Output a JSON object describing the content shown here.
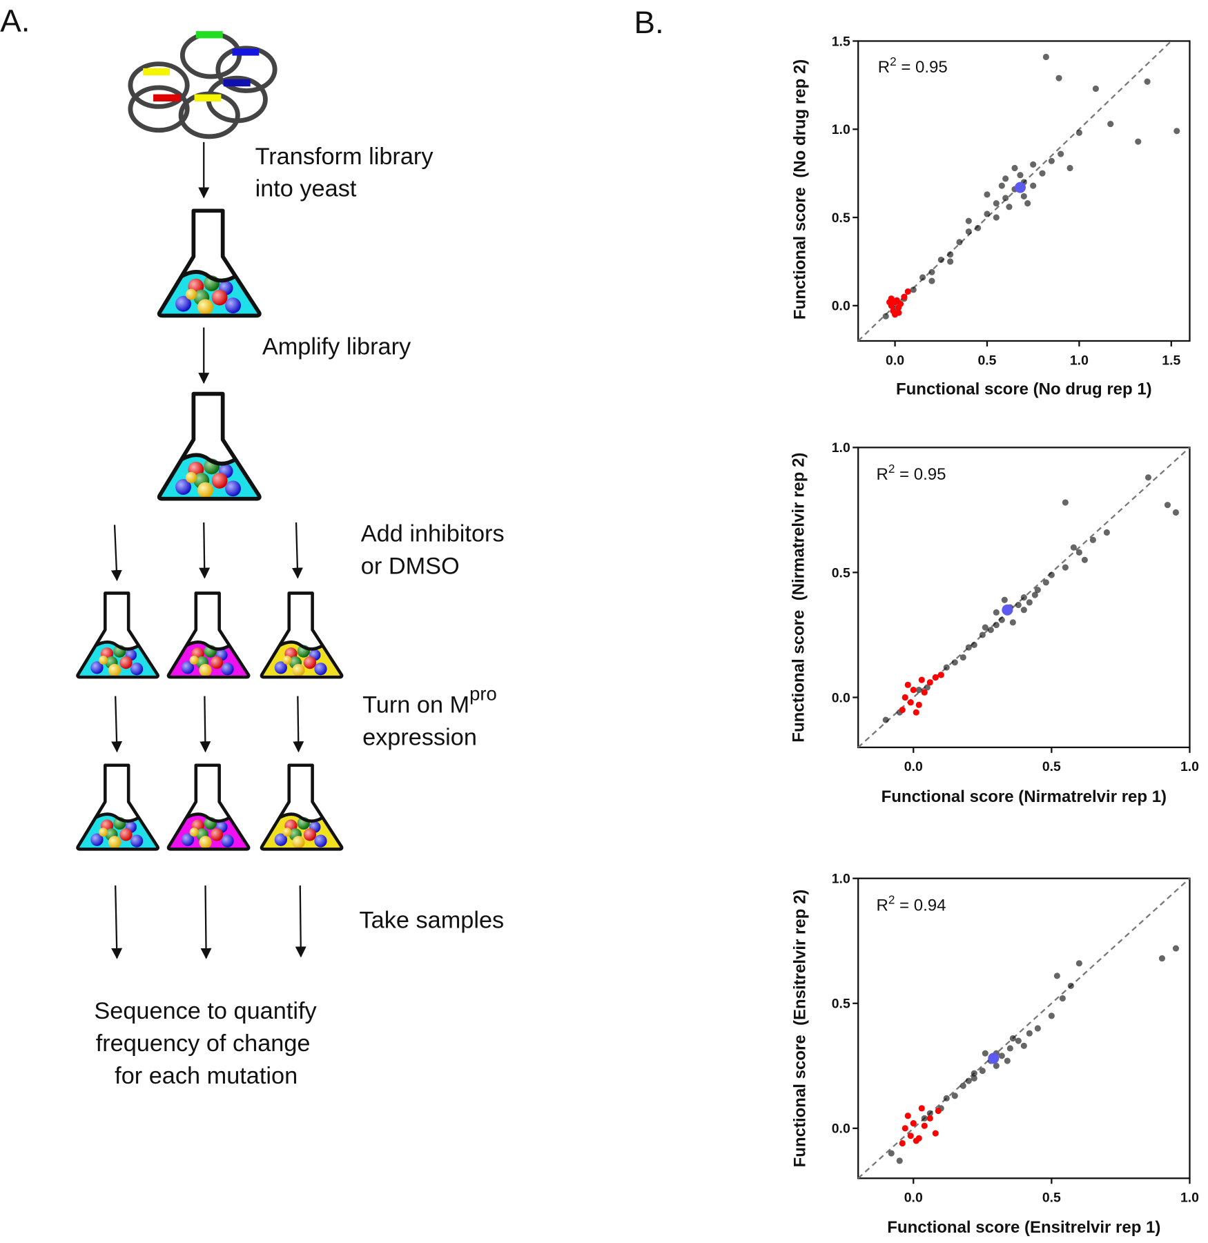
{
  "panel_a": {
    "label": "A.",
    "transform": [
      "Transform library",
      "into yeast"
    ],
    "amplify": "Amplify library",
    "inhibitors": [
      "Add inhibitors",
      "or DMSO"
    ],
    "expression": {
      "text": "Turn on M",
      "superscript": "pro",
      "line2": "expression"
    },
    "samples": "Take samples",
    "sequence": [
      "Sequence to quantify",
      "frequency of change",
      "for each mutation"
    ]
  },
  "panel_b": {
    "label": "B."
  },
  "chart_data": [
    {
      "type": "scatter",
      "x_label": "Functional score (No drug rep 1)",
      "y_label": "Functional score  (No drug rep 2)",
      "annotation": {
        "symbol": "R",
        "exponent": "2",
        "text": " = 0.95"
      },
      "xlim": [
        -0.2,
        1.6
      ],
      "ylim": [
        -0.2,
        1.5
      ],
      "xticks": [
        {
          "value": 0,
          "label": "0.0"
        },
        0.5,
        {
          "value": 1,
          "label": "1.0"
        },
        1.5
      ],
      "yticks": [
        {
          "value": 0,
          "label": "0.0"
        },
        0.5,
        {
          "value": 1,
          "label": "1.0"
        },
        1.5
      ],
      "series": [
        {
          "color": "#000000",
          "x": [
            0.05,
            0.1,
            0.15,
            0.2,
            0.25,
            0.3,
            0.35,
            0.4,
            0.45,
            0.5,
            0.55,
            0.6,
            0.65,
            0.7,
            0.75,
            0.8,
            0.5,
            0.6,
            0.7,
            0.55,
            0.65,
            0.75,
            0.4,
            0.3,
            0.2,
            0.62,
            0.72,
            0.58,
            0.68,
            0.85,
            0.9,
            0.95,
            1.0,
            0.89,
            0.82,
            1.37,
            1.53,
            1.32,
            1.09,
            1.17,
            -0.05,
            0.0
          ],
          "y": [
            0.04,
            0.09,
            0.16,
            0.19,
            0.26,
            0.29,
            0.36,
            0.42,
            0.44,
            0.52,
            0.58,
            0.61,
            0.66,
            0.7,
            0.68,
            0.75,
            0.63,
            0.72,
            0.62,
            0.5,
            0.78,
            0.8,
            0.48,
            0.25,
            0.14,
            0.56,
            0.58,
            0.68,
            0.74,
            0.82,
            0.86,
            0.78,
            0.98,
            1.29,
            1.41,
            1.27,
            0.99,
            0.93,
            1.23,
            1.03,
            -0.06,
            -0.02
          ]
        },
        {
          "color": "#ff0000",
          "x": [
            -0.02,
            0.0,
            0.02,
            -0.01,
            0.01,
            0.03,
            -0.03,
            0.05,
            0.0,
            0.07,
            0.02,
            -0.02
          ],
          "y": [
            0.0,
            0.02,
            -0.01,
            -0.03,
            0.03,
            0.01,
            0.02,
            0.05,
            -0.05,
            0.08,
            -0.04,
            0.04
          ]
        },
        {
          "color": "#5b5bf0",
          "x": [
            0.68
          ],
          "y": [
            0.67
          ]
        }
      ]
    },
    {
      "type": "scatter",
      "x_label": "Functional score (Nirmatrelvir rep 1)",
      "y_label": "Functional score  (Nirmatrelvir rep 2)",
      "annotation": {
        "symbol": "R",
        "exponent": "2",
        "text": " = 0.95"
      },
      "xlim": [
        -0.2,
        1.0
      ],
      "ylim": [
        -0.2,
        1.0
      ],
      "xticks": [
        {
          "value": 0,
          "label": "0.0"
        },
        0.5,
        {
          "value": 1,
          "label": "1.0"
        }
      ],
      "yticks": [
        {
          "value": 0,
          "label": "0.0"
        },
        0.5,
        {
          "value": 1,
          "label": "1.0"
        }
      ],
      "series": [
        {
          "color": "#000000",
          "x": [
            0.02,
            0.05,
            0.08,
            0.1,
            0.12,
            0.15,
            0.18,
            0.2,
            0.22,
            0.25,
            0.28,
            0.3,
            0.32,
            0.35,
            0.38,
            0.4,
            0.42,
            0.45,
            0.3,
            0.36,
            0.4,
            0.26,
            0.33,
            0.44,
            0.48,
            0.5,
            0.55,
            0.6,
            0.65,
            0.7,
            0.85,
            0.95,
            0.92,
            0.55,
            0.58,
            0.62,
            -0.1,
            -0.05
          ],
          "y": [
            0.03,
            0.04,
            0.08,
            0.09,
            0.12,
            0.14,
            0.16,
            0.2,
            0.21,
            0.25,
            0.27,
            0.29,
            0.31,
            0.36,
            0.37,
            0.4,
            0.38,
            0.43,
            0.34,
            0.3,
            0.35,
            0.28,
            0.39,
            0.41,
            0.46,
            0.49,
            0.52,
            0.58,
            0.63,
            0.66,
            0.88,
            0.74,
            0.77,
            0.78,
            0.6,
            0.55,
            -0.09,
            -0.06
          ]
        },
        {
          "color": "#ff0000",
          "x": [
            -0.03,
            -0.01,
            0.0,
            0.02,
            -0.02,
            0.04,
            0.06,
            0.08,
            -0.04,
            0.01,
            0.03,
            0.1
          ],
          "y": [
            0.0,
            -0.02,
            0.03,
            -0.03,
            0.05,
            0.02,
            0.06,
            0.08,
            -0.05,
            -0.06,
            0.07,
            0.09
          ]
        },
        {
          "color": "#5b5bf0",
          "x": [
            0.34
          ],
          "y": [
            0.35
          ]
        }
      ]
    },
    {
      "type": "scatter",
      "x_label": "Functional score (Ensitrelvir rep 1)",
      "y_label": "Functional score  (Ensitrelvir rep 2)",
      "annotation": {
        "symbol": "R",
        "exponent": "2",
        "text": " = 0.94"
      },
      "xlim": [
        -0.2,
        1.0
      ],
      "ylim": [
        -0.2,
        1.0
      ],
      "xticks": [
        {
          "value": 0,
          "label": "0.0"
        },
        0.5,
        {
          "value": 1,
          "label": "1.0"
        }
      ],
      "yticks": [
        {
          "value": 0,
          "label": "0.0"
        },
        0.5,
        {
          "value": 1,
          "label": "1.0"
        }
      ],
      "series": [
        {
          "color": "#000000",
          "x": [
            0.0,
            0.04,
            0.06,
            0.1,
            0.12,
            0.15,
            0.18,
            0.2,
            0.22,
            0.25,
            0.28,
            0.3,
            0.32,
            0.35,
            0.38,
            0.4,
            0.42,
            0.26,
            0.3,
            0.34,
            0.22,
            0.36,
            0.45,
            0.5,
            0.54,
            0.52,
            0.6,
            0.95,
            0.9,
            0.57,
            -0.08,
            -0.05
          ],
          "y": [
            0.02,
            0.04,
            0.06,
            0.08,
            0.12,
            0.13,
            0.17,
            0.19,
            0.22,
            0.23,
            0.27,
            0.3,
            0.29,
            0.32,
            0.35,
            0.33,
            0.38,
            0.3,
            0.25,
            0.27,
            0.2,
            0.36,
            0.4,
            0.45,
            0.52,
            0.61,
            0.66,
            0.72,
            0.68,
            0.57,
            -0.1,
            -0.13
          ]
        },
        {
          "color": "#ff0000",
          "x": [
            -0.03,
            -0.01,
            0.0,
            0.02,
            -0.02,
            0.04,
            0.06,
            0.09,
            -0.04,
            0.01,
            0.03,
            0.08
          ],
          "y": [
            0.0,
            -0.03,
            0.02,
            -0.04,
            0.05,
            0.01,
            0.04,
            0.07,
            -0.06,
            -0.05,
            0.08,
            -0.02
          ]
        },
        {
          "color": "#5b5bf0",
          "x": [
            0.29
          ],
          "y": [
            0.28
          ]
        }
      ]
    }
  ]
}
